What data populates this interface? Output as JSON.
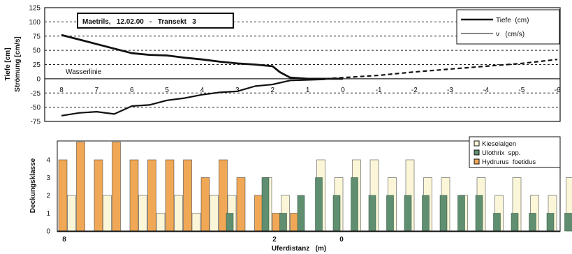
{
  "chart_data": [
    {
      "type": "line",
      "title": "Maetrils,   12.02.00   -   Transekt   3",
      "ylabel": "Tiefe  [cm]\nStrömung  [cm/s]",
      "ylim": [
        -75,
        125
      ],
      "yticks": [
        125,
        100,
        75,
        50,
        25,
        0,
        -25,
        -50,
        -75
      ],
      "xlim": [
        8,
        -6
      ],
      "xticks": [
        "8",
        "7",
        "6",
        "5",
        "4",
        "3",
        "2",
        "1",
        "0",
        "-1",
        "-2",
        "-3",
        "-4",
        "-5",
        "-6"
      ],
      "grid": "horizontal dashed",
      "legend_position": "top-right",
      "annotation": "Wasserlinie",
      "series": [
        {
          "name": "Tiefe  (cm)",
          "color": "#111111",
          "x": [
            8,
            7.5,
            7,
            6.5,
            6,
            5.5,
            5,
            4.5,
            4,
            3.5,
            3,
            2.5,
            2,
            1.8,
            1.5,
            1,
            0.5,
            0
          ],
          "y": [
            77,
            69,
            61,
            53,
            45,
            42,
            41,
            37,
            34,
            30,
            27,
            25,
            22,
            12,
            2,
            0,
            0,
            0
          ]
        },
        {
          "name": "v   (cm/s)",
          "color": "#111111",
          "x": [
            8,
            7.5,
            7,
            6.5,
            6,
            5.5,
            5,
            4.5,
            4,
            3.5,
            3,
            2.5,
            2,
            1.5,
            1,
            0.5
          ],
          "y": [
            -65,
            -60,
            -58,
            -62,
            -48,
            -46,
            -38,
            -34,
            -28,
            -24,
            -22,
            -13,
            -10,
            -3,
            -2,
            -1
          ]
        },
        {
          "name": "",
          "color": "#111111",
          "style": "dashed",
          "x": [
            0.5,
            -1,
            -2,
            -3,
            -4,
            -5,
            -6
          ],
          "y": [
            0,
            6,
            12,
            17,
            22,
            27,
            34
          ]
        }
      ]
    },
    {
      "type": "bar",
      "xlabel": "Uferdistanz   (m)",
      "ylabel": "Deckungsklasse",
      "ylim": [
        0,
        5
      ],
      "yticks": [
        "0",
        "1",
        "2",
        "3",
        "4"
      ],
      "xticks": [
        {
          "label": "8",
          "x": 8
        },
        {
          "label": "2",
          "x": 2
        },
        {
          "label": "0",
          "x": 0
        }
      ],
      "legend_position": "top-right",
      "series": [
        {
          "name": "Kieselalgen",
          "color": "#fbf6d8",
          "values": [
            2,
            0,
            2,
            0,
            2,
            1,
            2,
            1,
            2,
            2,
            0,
            3,
            2,
            0,
            4,
            3,
            4,
            4,
            3,
            4,
            3,
            3,
            2,
            3,
            2,
            3,
            2,
            2,
            3,
            1,
            1,
            1
          ]
        },
        {
          "name": "Ulothrix  spp.",
          "color": "#5f8e70",
          "values": [
            0,
            0,
            0,
            0,
            0,
            0,
            0,
            0,
            0,
            1,
            0,
            3,
            1,
            2,
            3,
            2,
            3,
            2,
            2,
            2,
            2,
            2,
            2,
            2,
            1,
            1,
            1,
            1,
            1,
            1,
            0,
            0
          ]
        },
        {
          "name": "Hydrurus  foetidus",
          "color": "#f0a856",
          "values": [
            4,
            5,
            4,
            5,
            4,
            4,
            4,
            4,
            3,
            4,
            3,
            2,
            1,
            1,
            0,
            0,
            0,
            0,
            0,
            0,
            0,
            0,
            0,
            0,
            0,
            0,
            0,
            0,
            0,
            0,
            0,
            0
          ]
        }
      ]
    }
  ]
}
